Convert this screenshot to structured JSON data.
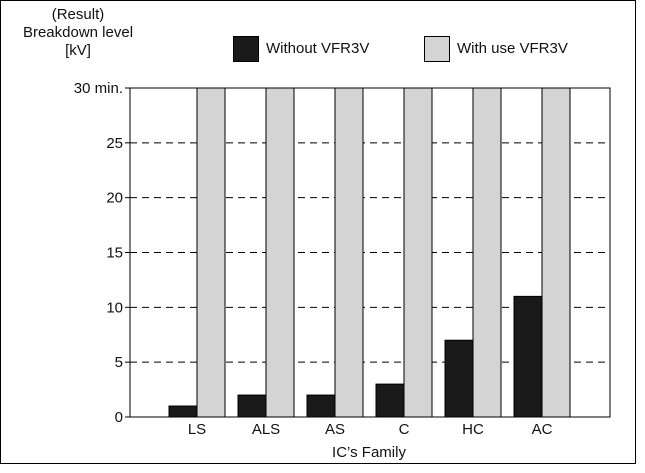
{
  "chart_data": {
    "type": "bar",
    "ylabel_lines": [
      "(Result)",
      "Breakdown level",
      "[kV]"
    ],
    "xlabel": "IC’s Family",
    "categories": [
      "LS",
      "ALS",
      "AS",
      "C",
      "HC",
      "AC"
    ],
    "yticks": [
      {
        "value": 0,
        "label": "0"
      },
      {
        "value": 5,
        "label": "5"
      },
      {
        "value": 10,
        "label": "10"
      },
      {
        "value": 15,
        "label": "15"
      },
      {
        "value": 20,
        "label": "20"
      },
      {
        "value": 25,
        "label": "25"
      },
      {
        "value": 30,
        "label": "30 min."
      }
    ],
    "ylim": [
      0,
      30
    ],
    "grid": "dashed horizontal",
    "legend_position": "top",
    "series": [
      {
        "name": "Without VFR3V",
        "color": "#1a1a1a",
        "values": [
          1,
          2,
          2,
          3,
          7,
          11
        ]
      },
      {
        "name": "With use VFR3V",
        "color": "#d4d4d4",
        "values": [
          30,
          30,
          30,
          30,
          30,
          30
        ]
      }
    ]
  }
}
